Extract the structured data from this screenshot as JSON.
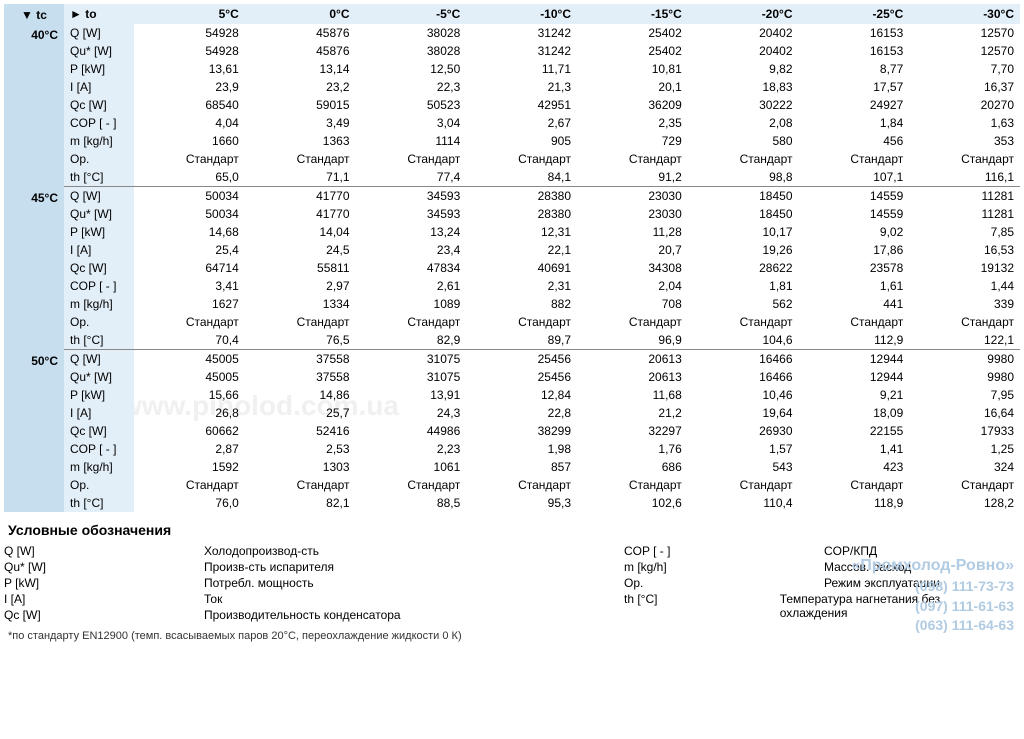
{
  "table": {
    "header_tc": "▼ tc",
    "header_to": "► to",
    "to_columns": [
      "5°C",
      "0°C",
      "-5°C",
      "-10°C",
      "-15°C",
      "-20°C",
      "-25°C",
      "-30°C"
    ],
    "params": [
      "Q [W]",
      "Qu* [W]",
      "P [kW]",
      "I [A]",
      "Qc [W]",
      "COP [ - ]",
      "m [kg/h]",
      "Op.",
      "th [°C]"
    ],
    "groups": [
      {
        "tc": "40°C",
        "rows": [
          [
            "54928",
            "45876",
            "38028",
            "31242",
            "25402",
            "20402",
            "16153",
            "12570"
          ],
          [
            "54928",
            "45876",
            "38028",
            "31242",
            "25402",
            "20402",
            "16153",
            "12570"
          ],
          [
            "13,61",
            "13,14",
            "12,50",
            "11,71",
            "10,81",
            "9,82",
            "8,77",
            "7,70"
          ],
          [
            "23,9",
            "23,2",
            "22,3",
            "21,3",
            "20,1",
            "18,83",
            "17,57",
            "16,37"
          ],
          [
            "68540",
            "59015",
            "50523",
            "42951",
            "36209",
            "30222",
            "24927",
            "20270"
          ],
          [
            "4,04",
            "3,49",
            "3,04",
            "2,67",
            "2,35",
            "2,08",
            "1,84",
            "1,63"
          ],
          [
            "1660",
            "1363",
            "1114",
            "905",
            "729",
            "580",
            "456",
            "353"
          ],
          [
            "Стандарт",
            "Стандарт",
            "Стандарт",
            "Стандарт",
            "Стандарт",
            "Стандарт",
            "Стандарт",
            "Стандарт"
          ],
          [
            "65,0",
            "71,1",
            "77,4",
            "84,1",
            "91,2",
            "98,8",
            "107,1",
            "116,1"
          ]
        ]
      },
      {
        "tc": "45°C",
        "rows": [
          [
            "50034",
            "41770",
            "34593",
            "28380",
            "23030",
            "18450",
            "14559",
            "11281"
          ],
          [
            "50034",
            "41770",
            "34593",
            "28380",
            "23030",
            "18450",
            "14559",
            "11281"
          ],
          [
            "14,68",
            "14,04",
            "13,24",
            "12,31",
            "11,28",
            "10,17",
            "9,02",
            "7,85"
          ],
          [
            "25,4",
            "24,5",
            "23,4",
            "22,1",
            "20,7",
            "19,26",
            "17,86",
            "16,53"
          ],
          [
            "64714",
            "55811",
            "47834",
            "40691",
            "34308",
            "28622",
            "23578",
            "19132"
          ],
          [
            "3,41",
            "2,97",
            "2,61",
            "2,31",
            "2,04",
            "1,81",
            "1,61",
            "1,44"
          ],
          [
            "1627",
            "1334",
            "1089",
            "882",
            "708",
            "562",
            "441",
            "339"
          ],
          [
            "Стандарт",
            "Стандарт",
            "Стандарт",
            "Стандарт",
            "Стандарт",
            "Стандарт",
            "Стандарт",
            "Стандарт"
          ],
          [
            "70,4",
            "76,5",
            "82,9",
            "89,7",
            "96,9",
            "104,6",
            "112,9",
            "122,1"
          ]
        ]
      },
      {
        "tc": "50°C",
        "rows": [
          [
            "45005",
            "37558",
            "31075",
            "25456",
            "20613",
            "16466",
            "12944",
            "9980"
          ],
          [
            "45005",
            "37558",
            "31075",
            "25456",
            "20613",
            "16466",
            "12944",
            "9980"
          ],
          [
            "15,66",
            "14,86",
            "13,91",
            "12,84",
            "11,68",
            "10,46",
            "9,21",
            "7,95"
          ],
          [
            "26,8",
            "25,7",
            "24,3",
            "22,8",
            "21,2",
            "19,64",
            "18,09",
            "16,64"
          ],
          [
            "60662",
            "52416",
            "44986",
            "38299",
            "32297",
            "26930",
            "22155",
            "17933"
          ],
          [
            "2,87",
            "2,53",
            "2,23",
            "1,98",
            "1,76",
            "1,57",
            "1,41",
            "1,25"
          ],
          [
            "1592",
            "1303",
            "1061",
            "857",
            "686",
            "543",
            "423",
            "324"
          ],
          [
            "Стандарт",
            "Стандарт",
            "Стандарт",
            "Стандарт",
            "Стандарт",
            "Стандарт",
            "Стандарт",
            "Стандарт"
          ],
          [
            "76,0",
            "82,1",
            "88,5",
            "95,3",
            "102,6",
            "110,4",
            "118,9",
            "128,2"
          ]
        ]
      }
    ]
  },
  "legend": {
    "title": "Условные обозначения",
    "col1": [
      {
        "k": "Q [W]",
        "v": "Холодопроизвод-сть"
      },
      {
        "k": "Qu* [W]",
        "v": "Произв-сть испарителя"
      },
      {
        "k": "P [kW]",
        "v": "Потребл. мощность"
      },
      {
        "k": "I [A]",
        "v": "Ток"
      },
      {
        "k": "Qc [W]",
        "v": "Производительность конденсатора"
      }
    ],
    "col2": [
      {
        "k": "COP [ - ]",
        "v": "COP/КПД"
      },
      {
        "k": "m [kg/h]",
        "v": "Массов. расход"
      },
      {
        "k": "Op.",
        "v": "Режим эксплуатации"
      },
      {
        "k": "th [°C]",
        "v": "Температура нагнетания без охлаждения"
      }
    ]
  },
  "footnote": "*по стандарту EN12900 (темп. всасываемых паров 20°С, переохлаждение жидкости 0 К)",
  "contact": {
    "title": "«Промхолод-Ровно»",
    "p1": "(098) 111-73-73",
    "p2": "(097) 111-61-63",
    "p3": "(063) 111-64-63"
  },
  "watermark": "www.piholod.com.ua"
}
